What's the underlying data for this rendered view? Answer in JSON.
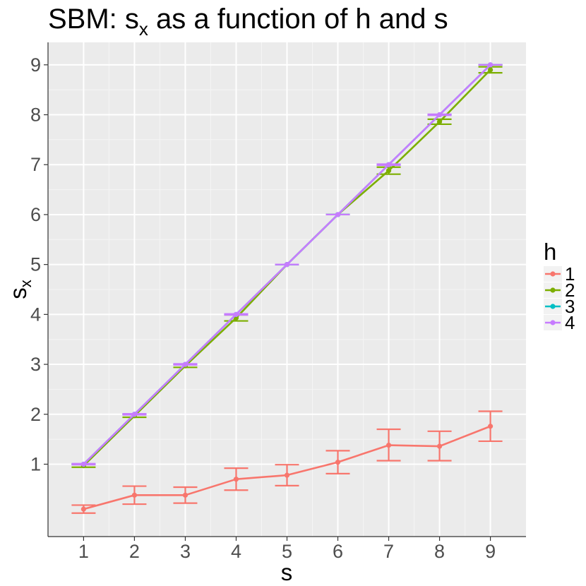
{
  "chart_data": {
    "type": "line",
    "title": "SBM: s",
    "title_subscript": "x",
    "title_rest": " as a function of h and s",
    "xlabel": "s",
    "ylabel": "s",
    "ylabel_subscript": "x",
    "x": [
      1,
      2,
      3,
      4,
      5,
      6,
      7,
      8,
      9
    ],
    "x_ticks": [
      "1",
      "2",
      "3",
      "4",
      "5",
      "6",
      "7",
      "8",
      "9"
    ],
    "y_ticks": [
      "1",
      "2",
      "3",
      "4",
      "5",
      "6",
      "7",
      "8",
      "9"
    ],
    "xlim": [
      0.3,
      9.7
    ],
    "ylim": [
      -0.45,
      9.45
    ],
    "grid": true,
    "legend_title": "h",
    "legend_position": "right",
    "series": [
      {
        "name": "1",
        "color": "#F8766D",
        "values": [
          0.1,
          0.38,
          0.38,
          0.7,
          0.78,
          1.04,
          1.38,
          1.36,
          1.76
        ],
        "err_low": [
          0.02,
          0.2,
          0.22,
          0.48,
          0.57,
          0.81,
          1.07,
          1.07,
          1.46
        ],
        "err_high": [
          0.18,
          0.56,
          0.54,
          0.92,
          0.99,
          1.27,
          1.7,
          1.66,
          2.06
        ]
      },
      {
        "name": "2",
        "color": "#7CAE00",
        "values": [
          0.97,
          1.97,
          2.97,
          3.93,
          5.0,
          6.0,
          6.88,
          7.86,
          8.9
        ],
        "err_low": [
          0.94,
          1.94,
          2.94,
          3.87,
          5.0,
          6.0,
          6.81,
          7.81,
          8.84
        ],
        "err_high": [
          1.0,
          2.0,
          3.0,
          3.99,
          5.0,
          6.0,
          6.95,
          7.91,
          8.96
        ]
      },
      {
        "name": "3",
        "color": "#00BFC4",
        "values": [
          1.0,
          2.0,
          3.0,
          4.0,
          5.0,
          6.0,
          7.0,
          8.0,
          9.0
        ],
        "err_low": [
          1.0,
          2.0,
          3.0,
          4.0,
          5.0,
          6.0,
          7.0,
          8.0,
          9.0
        ],
        "err_high": [
          1.0,
          2.0,
          3.0,
          4.0,
          5.0,
          6.0,
          7.0,
          8.0,
          9.0
        ]
      },
      {
        "name": "4",
        "color": "#C77CFF",
        "values": [
          1.0,
          2.0,
          3.0,
          4.0,
          5.0,
          6.0,
          7.0,
          8.0,
          9.0
        ],
        "err_low": [
          0.99,
          1.99,
          2.99,
          3.99,
          5.0,
          6.0,
          6.99,
          7.99,
          9.0
        ],
        "err_high": [
          1.01,
          2.01,
          3.01,
          4.01,
          5.0,
          6.0,
          7.01,
          8.01,
          9.0
        ]
      }
    ]
  }
}
